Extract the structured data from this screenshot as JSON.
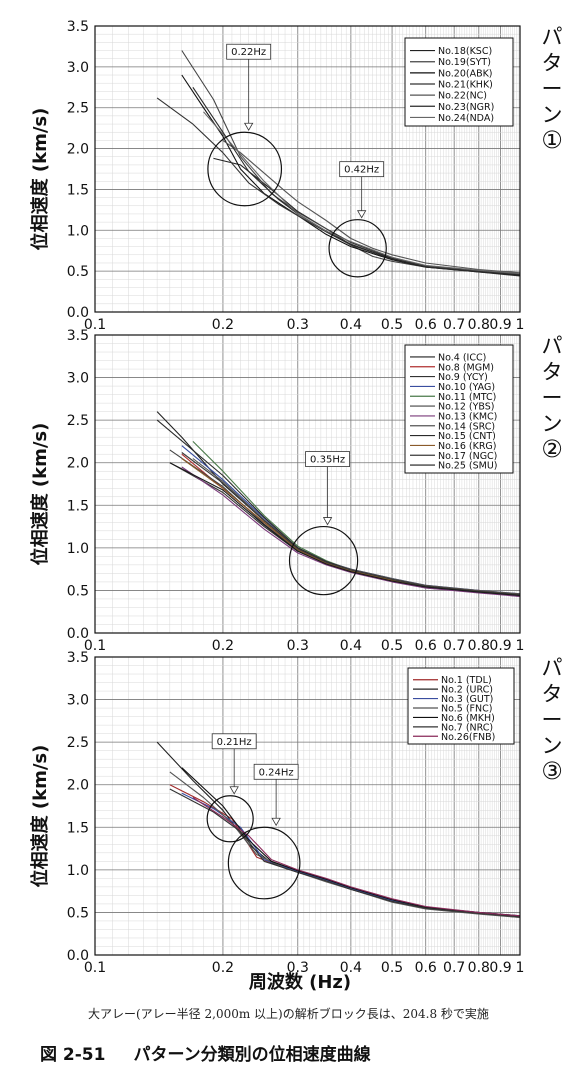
{
  "figure": {
    "x_axis_label": "周波数 (Hz)",
    "note": "大アレー(アレー半径 2,000m 以上)の解析ブロック長は、204.8 秒で実施",
    "caption_number": "図 2-51",
    "caption_title": "パターン分類別の位相速度曲線"
  },
  "chart_data": [
    {
      "type": "line",
      "pattern_label": "パターン①",
      "ylabel": "位相速度 (km/s)",
      "xlabel": "",
      "x_scale": "log",
      "xlim": [
        0.1,
        1.0
      ],
      "ylim": [
        0.0,
        3.5
      ],
      "x_ticks": [
        "0.1",
        "0.2",
        "0.3",
        "0.4",
        "0.5",
        "0.6",
        "0.7",
        "0.8",
        "0.9",
        "1"
      ],
      "x_tick_values": [
        0.1,
        0.2,
        0.3,
        0.4,
        0.5,
        0.6,
        0.7,
        0.8,
        0.9,
        1.0
      ],
      "y_ticks": [
        "0.0",
        "0.5",
        "1.0",
        "1.5",
        "2.0",
        "2.5",
        "3.0",
        "3.5"
      ],
      "y_tick_values": [
        0.0,
        0.5,
        1.0,
        1.5,
        2.0,
        2.5,
        3.0,
        3.5
      ],
      "grid": true,
      "legend_position": "top-right",
      "series": [
        {
          "name": "No.18(KSC)",
          "color": "#222222",
          "x": [
            0.19,
            0.22,
            0.26,
            0.3,
            0.35,
            0.4,
            0.5,
            0.6,
            0.8,
            1.0
          ],
          "y": [
            1.88,
            1.8,
            1.5,
            1.23,
            1.02,
            0.85,
            0.66,
            0.56,
            0.5,
            0.45
          ]
        },
        {
          "name": "No.19(SYT)",
          "color": "#444444",
          "x": [
            0.16,
            0.19,
            0.22,
            0.26,
            0.3,
            0.35,
            0.4,
            0.45,
            0.5,
            0.6,
            0.8,
            1.0
          ],
          "y": [
            3.2,
            2.6,
            1.9,
            1.45,
            1.22,
            1.02,
            0.82,
            0.68,
            0.62,
            0.55,
            0.5,
            0.46
          ]
        },
        {
          "name": "No.20(ABK)",
          "color": "#111111",
          "x": [
            0.16,
            0.18,
            0.2,
            0.22,
            0.25,
            0.3,
            0.35,
            0.4,
            0.5,
            0.6,
            0.8,
            1.0
          ],
          "y": [
            2.9,
            2.5,
            2.15,
            1.75,
            1.45,
            1.18,
            0.95,
            0.8,
            0.64,
            0.55,
            0.49,
            0.45
          ]
        },
        {
          "name": "No.21(KHK)",
          "color": "#333333",
          "x": [
            0.14,
            0.17,
            0.2,
            0.23,
            0.27,
            0.3,
            0.35,
            0.4,
            0.5,
            0.6,
            0.8,
            1.0
          ],
          "y": [
            2.62,
            2.3,
            1.95,
            1.58,
            1.32,
            1.18,
            0.98,
            0.82,
            0.65,
            0.56,
            0.5,
            0.46
          ]
        },
        {
          "name": "No.22(NC)",
          "color": "#555555",
          "x": [
            0.2,
            0.22,
            0.25,
            0.28,
            0.3,
            0.35,
            0.4,
            0.45,
            0.5,
            0.6,
            0.8,
            1.0
          ],
          "y": [
            2.1,
            1.95,
            1.7,
            1.48,
            1.35,
            1.12,
            0.9,
            0.78,
            0.7,
            0.6,
            0.52,
            0.48
          ]
        },
        {
          "name": "No.23(NGR)",
          "color": "#2a2a2a",
          "x": [
            0.17,
            0.2,
            0.23,
            0.27,
            0.3,
            0.35,
            0.4,
            0.5,
            0.6,
            0.8,
            1.0
          ],
          "y": [
            2.75,
            2.2,
            1.72,
            1.38,
            1.2,
            0.99,
            0.83,
            0.65,
            0.55,
            0.49,
            0.44
          ]
        },
        {
          "name": "No.24(NDA)",
          "color": "#666666",
          "x": [
            0.18,
            0.21,
            0.25,
            0.3,
            0.35,
            0.4,
            0.5,
            0.6,
            0.8,
            1.0
          ],
          "y": [
            2.45,
            2.05,
            1.6,
            1.2,
            0.99,
            0.86,
            0.67,
            0.57,
            0.51,
            0.47
          ]
        }
      ],
      "annotations": [
        {
          "text": "0.22Hz",
          "x": 0.225,
          "y": 1.75,
          "r": 0.45
        },
        {
          "text": "0.42Hz",
          "x": 0.415,
          "y": 0.78,
          "r": 0.35
        }
      ]
    },
    {
      "type": "line",
      "pattern_label": "パターン②",
      "ylabel": "位相速度 (km/s)",
      "xlabel": "",
      "x_scale": "log",
      "xlim": [
        0.1,
        1.0
      ],
      "ylim": [
        0.0,
        3.5
      ],
      "x_ticks": [
        "0.1",
        "0.2",
        "0.3",
        "0.4",
        "0.5",
        "0.6",
        "0.7",
        "0.8",
        "0.9",
        "1"
      ],
      "x_tick_values": [
        0.1,
        0.2,
        0.3,
        0.4,
        0.5,
        0.6,
        0.7,
        0.8,
        0.9,
        1.0
      ],
      "y_ticks": [
        "0.0",
        "0.5",
        "1.0",
        "1.5",
        "2.0",
        "2.5",
        "3.0",
        "3.5"
      ],
      "y_tick_values": [
        0.0,
        0.5,
        1.0,
        1.5,
        2.0,
        2.5,
        3.0,
        3.5
      ],
      "grid": true,
      "legend_position": "top-right",
      "series": [
        {
          "name": "No.4 (ICC)",
          "color": "#222222",
          "x": [
            0.14,
            0.16,
            0.2,
            0.25,
            0.3,
            0.35,
            0.4,
            0.5,
            0.6,
            0.8,
            1.0
          ],
          "y": [
            2.6,
            2.3,
            1.75,
            1.32,
            1.0,
            0.82,
            0.72,
            0.62,
            0.55,
            0.49,
            0.46
          ]
        },
        {
          "name": "No.8 (MGM)",
          "color": "#b03030",
          "x": [
            0.16,
            0.2,
            0.25,
            0.3,
            0.35,
            0.4,
            0.5,
            0.6,
            0.8,
            1.0
          ],
          "y": [
            2.1,
            1.7,
            1.3,
            0.98,
            0.83,
            0.74,
            0.63,
            0.55,
            0.5,
            0.45
          ]
        },
        {
          "name": "No.9 (YCY)",
          "color": "#333333",
          "x": [
            0.15,
            0.2,
            0.25,
            0.3,
            0.35,
            0.4,
            0.5,
            0.6,
            0.8,
            1.0
          ],
          "y": [
            2.0,
            1.65,
            1.25,
            0.96,
            0.82,
            0.73,
            0.62,
            0.54,
            0.48,
            0.44
          ]
        },
        {
          "name": "No.10 (YAG)",
          "color": "#3a4ea0",
          "x": [
            0.16,
            0.2,
            0.25,
            0.3,
            0.35,
            0.4,
            0.5,
            0.6,
            0.8,
            1.0
          ],
          "y": [
            2.2,
            1.8,
            1.35,
            1.0,
            0.84,
            0.75,
            0.64,
            0.56,
            0.5,
            0.46
          ]
        },
        {
          "name": "No.11 (MTC)",
          "color": "#4a7a4a",
          "x": [
            0.17,
            0.2,
            0.25,
            0.3,
            0.35,
            0.4,
            0.5,
            0.6,
            0.8,
            1.0
          ],
          "y": [
            2.25,
            1.9,
            1.38,
            1.02,
            0.85,
            0.74,
            0.63,
            0.55,
            0.49,
            0.45
          ]
        },
        {
          "name": "No.12 (YBS)",
          "color": "#444444",
          "x": [
            0.15,
            0.2,
            0.25,
            0.3,
            0.35,
            0.4,
            0.5,
            0.6,
            0.8,
            1.0
          ],
          "y": [
            2.15,
            1.72,
            1.28,
            0.97,
            0.81,
            0.72,
            0.61,
            0.53,
            0.48,
            0.43
          ]
        },
        {
          "name": "No.13 (KMC)",
          "color": "#7a3a7a",
          "x": [
            0.16,
            0.2,
            0.25,
            0.3,
            0.35,
            0.4,
            0.5,
            0.6,
            0.8,
            1.0
          ],
          "y": [
            1.95,
            1.62,
            1.22,
            0.94,
            0.8,
            0.71,
            0.6,
            0.53,
            0.47,
            0.43
          ]
        },
        {
          "name": "No.14 (SRC)",
          "color": "#555555",
          "x": [
            0.17,
            0.2,
            0.25,
            0.3,
            0.35,
            0.4,
            0.5,
            0.6,
            0.8,
            1.0
          ],
          "y": [
            2.05,
            1.78,
            1.33,
            1.0,
            0.84,
            0.75,
            0.64,
            0.56,
            0.5,
            0.46
          ]
        },
        {
          "name": "No.15 (CNT)",
          "color": "#2a2a2a",
          "x": [
            0.14,
            0.2,
            0.25,
            0.3,
            0.35,
            0.4,
            0.5,
            0.6,
            0.8,
            1.0
          ],
          "y": [
            2.5,
            1.85,
            1.36,
            1.0,
            0.84,
            0.74,
            0.63,
            0.55,
            0.49,
            0.45
          ]
        },
        {
          "name": "No.16 (KRG)",
          "color": "#8a5a2a",
          "x": [
            0.16,
            0.2,
            0.25,
            0.3,
            0.35,
            0.4,
            0.5,
            0.6,
            0.8,
            1.0
          ],
          "y": [
            2.05,
            1.7,
            1.3,
            0.98,
            0.82,
            0.73,
            0.62,
            0.55,
            0.49,
            0.45
          ]
        },
        {
          "name": "No.17 (NGC)",
          "color": "#3a3a3a",
          "x": [
            0.16,
            0.2,
            0.25,
            0.3,
            0.35,
            0.4,
            0.5,
            0.6,
            0.8,
            1.0
          ],
          "y": [
            2.12,
            1.76,
            1.32,
            0.99,
            0.83,
            0.74,
            0.63,
            0.55,
            0.49,
            0.45
          ]
        },
        {
          "name": "No.25 (SMU)",
          "color": "#1a1a1a",
          "x": [
            0.15,
            0.2,
            0.25,
            0.3,
            0.35,
            0.4,
            0.5,
            0.6,
            0.8,
            1.0
          ],
          "y": [
            2.0,
            1.68,
            1.27,
            0.96,
            0.81,
            0.72,
            0.61,
            0.54,
            0.48,
            0.44
          ]
        }
      ],
      "annotations": [
        {
          "text": "0.35Hz",
          "x": 0.345,
          "y": 0.85,
          "r": 0.4
        }
      ]
    },
    {
      "type": "line",
      "pattern_label": "パターン③",
      "ylabel": "位相速度 (km/s)",
      "xlabel": "周波数 (Hz)",
      "x_scale": "log",
      "xlim": [
        0.1,
        1.0
      ],
      "ylim": [
        0.0,
        3.5
      ],
      "x_ticks": [
        "0.1",
        "0.2",
        "0.3",
        "0.4",
        "0.5",
        "0.6",
        "0.7",
        "0.8",
        "0.9",
        "1"
      ],
      "x_tick_values": [
        0.1,
        0.2,
        0.3,
        0.4,
        0.5,
        0.6,
        0.7,
        0.8,
        0.9,
        1.0
      ],
      "y_ticks": [
        "0.0",
        "0.5",
        "1.0",
        "1.5",
        "2.0",
        "2.5",
        "3.0",
        "3.5"
      ],
      "y_tick_values": [
        0.0,
        0.5,
        1.0,
        1.5,
        2.0,
        2.5,
        3.0,
        3.5
      ],
      "grid": true,
      "legend_position": "top-right",
      "series": [
        {
          "name": "No.1 (TDL)",
          "color": "#a02a2a",
          "x": [
            0.15,
            0.18,
            0.21,
            0.24,
            0.27,
            0.3,
            0.35,
            0.4,
            0.5,
            0.6,
            0.8,
            1.0
          ],
          "y": [
            2.0,
            1.8,
            1.6,
            1.15,
            1.05,
            0.98,
            0.88,
            0.78,
            0.64,
            0.55,
            0.49,
            0.45
          ]
        },
        {
          "name": "No.2 (URC)",
          "color": "#222222",
          "x": [
            0.14,
            0.17,
            0.2,
            0.23,
            0.26,
            0.3,
            0.35,
            0.4,
            0.5,
            0.6,
            0.8,
            1.0
          ],
          "y": [
            2.5,
            2.05,
            1.7,
            1.3,
            1.08,
            0.97,
            0.87,
            0.77,
            0.63,
            0.55,
            0.49,
            0.44
          ]
        },
        {
          "name": "No.3 (GUT)",
          "color": "#3a4ea0",
          "x": [
            0.16,
            0.19,
            0.22,
            0.25,
            0.3,
            0.35,
            0.4,
            0.5,
            0.6,
            0.8,
            1.0
          ],
          "y": [
            1.9,
            1.72,
            1.5,
            1.12,
            0.98,
            0.88,
            0.78,
            0.64,
            0.56,
            0.5,
            0.46
          ]
        },
        {
          "name": "No.5 (FNC)",
          "color": "#555555",
          "x": [
            0.15,
            0.18,
            0.21,
            0.24,
            0.28,
            0.3,
            0.35,
            0.4,
            0.5,
            0.6,
            0.8,
            1.0
          ],
          "y": [
            2.15,
            1.85,
            1.55,
            1.18,
            1.02,
            0.97,
            0.86,
            0.77,
            0.62,
            0.54,
            0.48,
            0.44
          ]
        },
        {
          "name": "No.6 (MKH)",
          "color": "#111111",
          "x": [
            0.16,
            0.2,
            0.23,
            0.26,
            0.3,
            0.35,
            0.4,
            0.5,
            0.6,
            0.8,
            1.0
          ],
          "y": [
            2.2,
            1.75,
            1.35,
            1.1,
            0.99,
            0.89,
            0.79,
            0.65,
            0.56,
            0.5,
            0.46
          ]
        },
        {
          "name": "No.7 (NRC)",
          "color": "#333333",
          "x": [
            0.15,
            0.19,
            0.22,
            0.25,
            0.3,
            0.35,
            0.4,
            0.5,
            0.6,
            0.8,
            1.0
          ],
          "y": [
            1.95,
            1.68,
            1.45,
            1.1,
            0.97,
            0.87,
            0.77,
            0.63,
            0.55,
            0.49,
            0.45
          ]
        },
        {
          "name": "No.26(FNB)",
          "color": "#8a2a5a",
          "x": [
            0.17,
            0.2,
            0.23,
            0.26,
            0.3,
            0.35,
            0.4,
            0.5,
            0.6,
            0.8,
            1.0
          ],
          "y": [
            1.85,
            1.62,
            1.4,
            1.12,
            1.0,
            0.9,
            0.8,
            0.66,
            0.57,
            0.5,
            0.46
          ]
        }
      ],
      "annotations": [
        {
          "text": "0.21Hz",
          "x": 0.208,
          "y": 1.6,
          "r": 0.27
        },
        {
          "text": "0.24Hz",
          "x": 0.25,
          "y": 1.08,
          "r": 0.42
        }
      ]
    }
  ]
}
